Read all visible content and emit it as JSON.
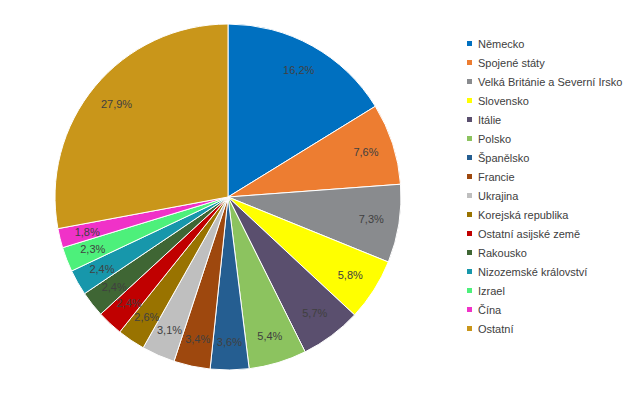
{
  "chart_data": {
    "type": "pie",
    "categories": [
      "Německo",
      "Spojené státy",
      "Velká Británie a Severní Irsko",
      "Slovensko",
      "Itálie",
      "Polsko",
      "Španělsko",
      "Francie",
      "Ukrajina",
      "Korejská republika",
      "Ostatní asijské země",
      "Rakousko",
      "Nizozemské království",
      "Izrael",
      "Čína",
      "Ostatní"
    ],
    "values": [
      16.2,
      7.6,
      7.3,
      5.8,
      5.7,
      5.4,
      3.6,
      3.4,
      3.1,
      2.6,
      2.4,
      2.4,
      2.4,
      2.3,
      1.8,
      27.9
    ],
    "value_labels": [
      "16,2%",
      "7,6%",
      "7,3%",
      "5,8%",
      "5,7%",
      "5,4%",
      "3,6%",
      "3,4%",
      "3,1%",
      "2,6%",
      "2,4%",
      "2,4%",
      "2,4%",
      "2,3%",
      "1,8%",
      "27,9%"
    ],
    "colors": [
      "#0070c0",
      "#ed7d31",
      "#898b8e",
      "#ffff00",
      "#5a4f6e",
      "#8cc35f",
      "#255e91",
      "#9e480e",
      "#bfbfbf",
      "#997300",
      "#c00000",
      "#3f6634",
      "#1797ab",
      "#4df07b",
      "#f032c8",
      "#c9961a"
    ],
    "data_labels": true,
    "legend": "right"
  }
}
